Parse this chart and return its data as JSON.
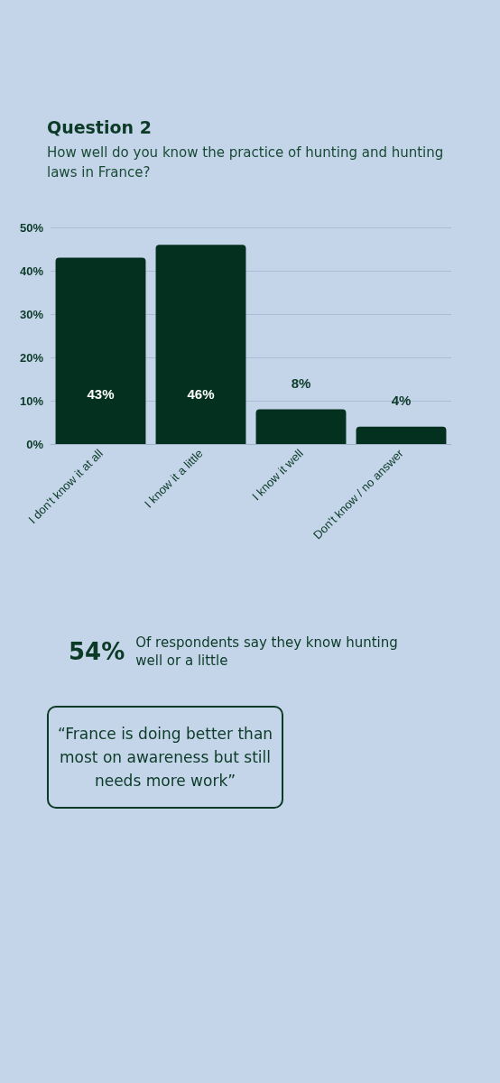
{
  "chart_data": {
    "type": "bar",
    "title": "Question 2",
    "subtitle": "How well do you know the practice of hunting and hunting laws in France?",
    "categories": [
      "I don't know it at all",
      "I know it a little",
      "I know it well",
      "Don't know / no answer"
    ],
    "values": [
      43,
      46,
      8,
      4
    ],
    "value_labels": [
      "43%",
      "46%",
      "8%",
      "4%"
    ],
    "color": "#04301f",
    "ylim": [
      0,
      50
    ],
    "yticks": [
      {
        "value": 0,
        "label": "0%"
      },
      {
        "value": 10,
        "label": "10%"
      },
      {
        "value": 20,
        "label": "20%"
      },
      {
        "value": 30,
        "label": "30%"
      },
      {
        "value": 40,
        "label": "40%"
      },
      {
        "value": 50,
        "label": "50%"
      }
    ],
    "grid": "y",
    "annotations": [
      "54%",
      "Of respondents say they know hunting well or a little",
      "“France is doing better than most on awareness but still needs more work”"
    ]
  }
}
